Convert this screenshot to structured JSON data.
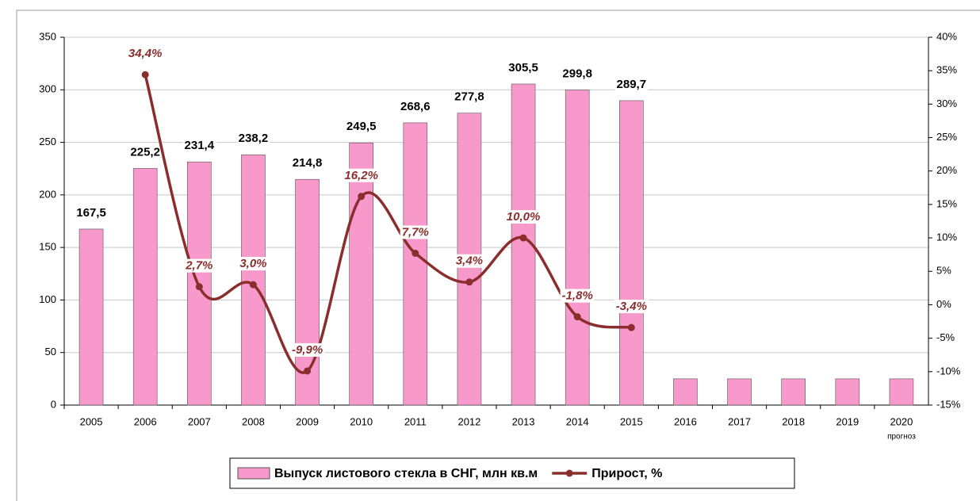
{
  "chart_data": {
    "type": "bar",
    "categories": [
      "2005",
      "2006",
      "2007",
      "2008",
      "2009",
      "2010",
      "2011",
      "2012",
      "2013",
      "2014",
      "2015",
      "2016",
      "2017",
      "2018",
      "2019",
      "2020"
    ],
    "annotation": "прогноз",
    "series": [
      {
        "name": "Выпуск листового стекла в СНГ, млн кв.м",
        "type": "bar",
        "color": "#f79acb",
        "values": [
          167.5,
          225.2,
          231.4,
          238.2,
          214.8,
          249.5,
          268.6,
          277.8,
          305.5,
          299.8,
          289.7,
          25,
          25,
          25,
          25,
          25
        ],
        "value_labels": [
          "167,5",
          "225,2",
          "231,4",
          "238,2",
          "214,8",
          "249,5",
          "268,6",
          "277,8",
          "305,5",
          "299,8",
          "289,7",
          null,
          null,
          null,
          null,
          null
        ]
      },
      {
        "name": "Прирост, %",
        "type": "line",
        "axis": "y2",
        "color": "#8b2d2d",
        "values": [
          null,
          34.4,
          2.7,
          3.0,
          -9.9,
          16.2,
          7.7,
          3.4,
          10.0,
          -1.8,
          -3.4,
          null,
          null,
          null,
          null,
          null
        ],
        "value_labels": [
          null,
          "34,4%",
          "2,7%",
          "3,0%",
          "-9,9%",
          "16,2%",
          "7,7%",
          "3,4%",
          "10,0%",
          "-1,8%",
          "-3,4%",
          null,
          null,
          null,
          null,
          null
        ]
      }
    ],
    "ylim": [
      0,
      350
    ],
    "yticks": [
      0,
      50,
      100,
      150,
      200,
      250,
      300,
      350
    ],
    "y2lim": [
      -15,
      40
    ],
    "y2ticks": [
      {
        "value": -15,
        "label": "-15%"
      },
      {
        "value": -10,
        "label": "-10%"
      },
      {
        "value": -5,
        "label": "-5%"
      },
      {
        "value": 0,
        "label": "0%"
      },
      {
        "value": 5,
        "label": "5%"
      },
      {
        "value": 10,
        "label": "10%"
      },
      {
        "value": 15,
        "label": "15%"
      },
      {
        "value": 20,
        "label": "20%"
      },
      {
        "value": 25,
        "label": "25%"
      },
      {
        "value": 30,
        "label": "30%"
      },
      {
        "value": 35,
        "label": "35%"
      },
      {
        "value": 40,
        "label": "40%"
      }
    ],
    "grid": true,
    "legend": "bottom"
  }
}
